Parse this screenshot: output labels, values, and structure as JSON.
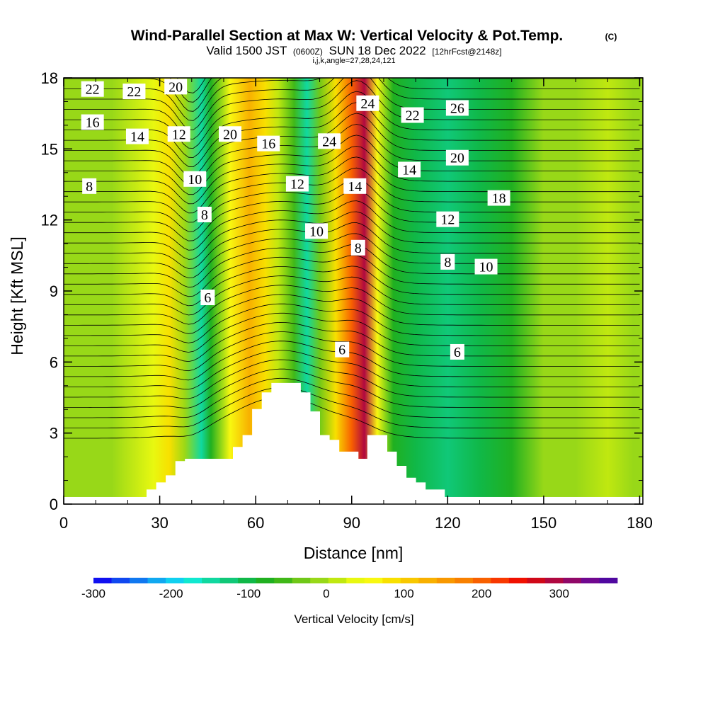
{
  "chart_data": {
    "type": "heatmap",
    "title": "Wind-Parallel Section at Max W: Vertical Velocity & Pot.Temp.",
    "title_mark": "(C)",
    "subtitle": {
      "valid_prefix": "Valid 1500 JST",
      "utc": "(0600Z)",
      "date": "SUN 18 Dec 2022",
      "forecast": "[12hrFcst@2148z]"
    },
    "subtitle2": "i,j,k,angle=27,28,24,121",
    "xlabel": "Distance [nm]",
    "ylabel": "Height [Kft MSL]",
    "xlim": [
      0,
      181
    ],
    "ylim": [
      0,
      18
    ],
    "x_ticks": [
      "0",
      "30",
      "60",
      "90",
      "120",
      "150",
      "180"
    ],
    "y_ticks": [
      "0",
      "3",
      "6",
      "9",
      "12",
      "15",
      "18"
    ],
    "colorbar": {
      "label": "Vertical Velocity [cm/s]",
      "range": [
        -300,
        375
      ],
      "ticks": [
        "-300",
        "-200",
        "-100",
        "0",
        "100",
        "200",
        "300"
      ],
      "colors": [
        "#1010f0",
        "#1048f0",
        "#1078f0",
        "#10a8f0",
        "#10d0f0",
        "#10e8d0",
        "#10d8a0",
        "#10c878",
        "#10b848",
        "#20b020",
        "#40b818",
        "#70c818",
        "#98d818",
        "#c0e810",
        "#e8f810",
        "#f8f810",
        "#f8e000",
        "#f8c800",
        "#f8b000",
        "#f89800",
        "#f88000",
        "#f86000",
        "#f83800",
        "#f01000",
        "#d00818",
        "#b00840",
        "#900868",
        "#700890",
        "#5008a0"
      ]
    },
    "velocity_columns": [
      {
        "x": 5,
        "w": -10
      },
      {
        "x": 15,
        "w": -5
      },
      {
        "x": 28,
        "w": 40
      },
      {
        "x": 33,
        "w": 80
      },
      {
        "x": 38,
        "w": -10
      },
      {
        "x": 43,
        "w": -140
      },
      {
        "x": 46,
        "w": -70
      },
      {
        "x": 52,
        "w": 70
      },
      {
        "x": 58,
        "w": 140
      },
      {
        "x": 63,
        "w": 90
      },
      {
        "x": 67,
        "w": 20
      },
      {
        "x": 72,
        "w": -60
      },
      {
        "x": 76,
        "w": -160
      },
      {
        "x": 80,
        "w": -30
      },
      {
        "x": 85,
        "w": 90
      },
      {
        "x": 90,
        "w": 200
      },
      {
        "x": 94,
        "w": 290
      },
      {
        "x": 98,
        "w": 60
      },
      {
        "x": 103,
        "w": -80
      },
      {
        "x": 110,
        "w": -100
      },
      {
        "x": 120,
        "w": -120
      },
      {
        "x": 130,
        "w": -110
      },
      {
        "x": 140,
        "w": -70
      },
      {
        "x": 150,
        "w": -20
      },
      {
        "x": 160,
        "w": -10
      },
      {
        "x": 170,
        "w": 20
      },
      {
        "x": 178,
        "w": -5
      }
    ],
    "terrain_profile": [
      [
        26,
        0.3
      ],
      [
        26,
        0.6
      ],
      [
        29,
        0.6
      ],
      [
        29,
        0.9
      ],
      [
        32,
        0.9
      ],
      [
        32,
        1.2
      ],
      [
        35,
        1.2
      ],
      [
        35,
        1.8
      ],
      [
        38,
        1.8
      ],
      [
        38,
        1.9
      ],
      [
        53,
        1.9
      ],
      [
        53,
        2.4
      ],
      [
        56,
        2.4
      ],
      [
        56,
        2.9
      ],
      [
        59,
        2.9
      ],
      [
        59,
        4.0
      ],
      [
        62,
        4.0
      ],
      [
        62,
        4.7
      ],
      [
        65,
        4.7
      ],
      [
        65,
        5.1
      ],
      [
        74,
        5.1
      ],
      [
        74,
        4.7
      ],
      [
        77,
        4.7
      ],
      [
        77,
        3.9
      ],
      [
        80,
        3.9
      ],
      [
        80,
        2.9
      ],
      [
        83,
        2.9
      ],
      [
        83,
        2.7
      ],
      [
        86,
        2.7
      ],
      [
        86,
        2.2
      ],
      [
        92,
        2.2
      ],
      [
        92,
        1.9
      ],
      [
        95,
        1.9
      ],
      [
        95,
        2.9
      ],
      [
        101,
        2.9
      ],
      [
        101,
        2.2
      ],
      [
        104,
        2.2
      ],
      [
        104,
        1.6
      ],
      [
        107,
        1.6
      ],
      [
        107,
        1.1
      ],
      [
        110,
        1.1
      ],
      [
        110,
        0.9
      ],
      [
        113,
        0.9
      ],
      [
        113,
        0.6
      ],
      [
        119,
        0.6
      ],
      [
        119,
        0.3
      ]
    ],
    "contour_labels": [
      {
        "x": 9,
        "y": 17.5,
        "text": "22"
      },
      {
        "x": 22,
        "y": 17.4,
        "text": "22"
      },
      {
        "x": 35,
        "y": 17.6,
        "text": "20"
      },
      {
        "x": 9,
        "y": 16.1,
        "text": "16"
      },
      {
        "x": 23,
        "y": 15.5,
        "text": "14"
      },
      {
        "x": 36,
        "y": 15.6,
        "text": "12"
      },
      {
        "x": 52,
        "y": 15.6,
        "text": "20"
      },
      {
        "x": 64,
        "y": 15.2,
        "text": "16"
      },
      {
        "x": 83,
        "y": 15.3,
        "text": "24"
      },
      {
        "x": 95,
        "y": 16.9,
        "text": "24"
      },
      {
        "x": 109,
        "y": 16.4,
        "text": "22"
      },
      {
        "x": 123,
        "y": 16.7,
        "text": "26"
      },
      {
        "x": 8,
        "y": 13.4,
        "text": "8"
      },
      {
        "x": 41,
        "y": 13.7,
        "text": "10"
      },
      {
        "x": 73,
        "y": 13.5,
        "text": "12"
      },
      {
        "x": 91,
        "y": 13.4,
        "text": "14"
      },
      {
        "x": 108,
        "y": 14.1,
        "text": "14"
      },
      {
        "x": 123,
        "y": 14.6,
        "text": "20"
      },
      {
        "x": 44,
        "y": 12.2,
        "text": "8"
      },
      {
        "x": 79,
        "y": 11.5,
        "text": "10"
      },
      {
        "x": 92,
        "y": 10.8,
        "text": "8"
      },
      {
        "x": 120,
        "y": 12.0,
        "text": "12"
      },
      {
        "x": 136,
        "y": 12.9,
        "text": "18"
      },
      {
        "x": 120,
        "y": 10.2,
        "text": "8"
      },
      {
        "x": 132,
        "y": 10.0,
        "text": "10"
      },
      {
        "x": 45,
        "y": 8.7,
        "text": "6"
      },
      {
        "x": 87,
        "y": 6.5,
        "text": "6"
      },
      {
        "x": 123,
        "y": 6.4,
        "text": "6"
      }
    ]
  }
}
